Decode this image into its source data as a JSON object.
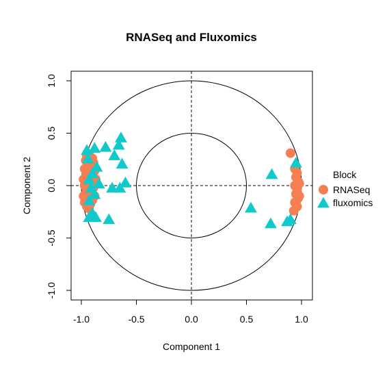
{
  "chart_data": {
    "type": "scatter",
    "title": "RNASeq and Fluxomics",
    "xlabel": "Component  1",
    "ylabel": "Component  2",
    "xlim": [
      -1.1,
      1.1
    ],
    "ylim": [
      -1.1,
      1.1
    ],
    "x_ticks": [
      "-1.0",
      "-0.5",
      "0.0",
      "0.5",
      "1.0"
    ],
    "y_ticks": [
      "-1.0",
      "-0.5",
      "0.0",
      "0.5",
      "1.0"
    ],
    "circles": [
      0.5,
      1.0
    ],
    "reference_lines": {
      "x": 0,
      "y": 0,
      "style": "dashed"
    },
    "grid": false,
    "legend": {
      "title": "Block",
      "placement": "right",
      "entries": [
        {
          "name": "RNASeq",
          "color": "#F57F52",
          "marker": "circle"
        },
        {
          "name": "fluxomics",
          "color": "#10C9CB",
          "marker": "triangle"
        }
      ]
    },
    "series": [
      {
        "name": "RNASeq",
        "color": "#F57F52",
        "marker": "circle",
        "points": [
          [
            -0.95,
            0.28
          ],
          [
            -0.93,
            0.3
          ],
          [
            -0.96,
            0.24
          ],
          [
            -0.94,
            0.2
          ],
          [
            -0.97,
            0.16
          ],
          [
            -0.95,
            0.12
          ],
          [
            -0.96,
            0.08
          ],
          [
            -0.94,
            0.04
          ],
          [
            -0.97,
            0.0
          ],
          [
            -0.95,
            -0.04
          ],
          [
            -0.96,
            -0.08
          ],
          [
            -0.94,
            -0.12
          ],
          [
            -0.97,
            -0.16
          ],
          [
            -0.95,
            -0.2
          ],
          [
            -0.93,
            -0.22
          ],
          [
            -0.9,
            0.26
          ],
          [
            -0.91,
            0.18
          ],
          [
            -0.9,
            0.1
          ],
          [
            -0.92,
            0.02
          ],
          [
            -0.91,
            -0.06
          ],
          [
            -0.9,
            -0.14
          ],
          [
            -0.88,
            0.14
          ],
          [
            -0.89,
            -0.02
          ],
          [
            -0.87,
            0.06
          ],
          [
            -0.88,
            -0.1
          ],
          [
            -0.89,
            0.22
          ],
          [
            -0.92,
            -0.18
          ],
          [
            -0.98,
            0.06
          ],
          [
            -0.98,
            -0.1
          ],
          [
            0.9,
            0.31
          ],
          [
            0.94,
            0.16
          ],
          [
            0.96,
            0.12
          ],
          [
            0.95,
            0.08
          ],
          [
            0.97,
            0.04
          ],
          [
            0.94,
            0.0
          ],
          [
            0.96,
            -0.04
          ],
          [
            0.95,
            -0.08
          ],
          [
            0.97,
            -0.12
          ],
          [
            0.94,
            -0.16
          ],
          [
            0.96,
            -0.2
          ],
          [
            0.93,
            -0.24
          ],
          [
            0.98,
            0.02
          ],
          [
            0.98,
            -0.1
          ]
        ]
      },
      {
        "name": "fluxomics",
        "color": "#10C9CB",
        "marker": "triangle",
        "points": [
          [
            -0.95,
            0.34
          ],
          [
            -0.88,
            0.36
          ],
          [
            -0.78,
            0.37
          ],
          [
            -0.7,
            0.29
          ],
          [
            -0.64,
            0.46
          ],
          [
            -0.66,
            0.39
          ],
          [
            -0.63,
            0.21
          ],
          [
            -0.6,
            0.03
          ],
          [
            -0.65,
            -0.02
          ],
          [
            -0.72,
            -0.02
          ],
          [
            -0.75,
            -0.32
          ],
          [
            -0.86,
            0.18
          ],
          [
            -0.9,
            0.12
          ],
          [
            -0.93,
            0.06
          ],
          [
            -0.91,
            -0.02
          ],
          [
            -0.88,
            -0.08
          ],
          [
            -0.93,
            -0.14
          ],
          [
            -0.9,
            -0.26
          ],
          [
            -0.87,
            -0.3
          ],
          [
            -0.93,
            -0.3
          ],
          [
            -0.84,
            0.02
          ],
          [
            -0.94,
            0.26
          ],
          [
            0.54,
            -0.21
          ],
          [
            0.72,
            -0.36
          ],
          [
            0.73,
            0.11
          ],
          [
            0.87,
            -0.34
          ],
          [
            0.9,
            -0.32
          ],
          [
            0.95,
            0.22
          ]
        ]
      }
    ]
  }
}
